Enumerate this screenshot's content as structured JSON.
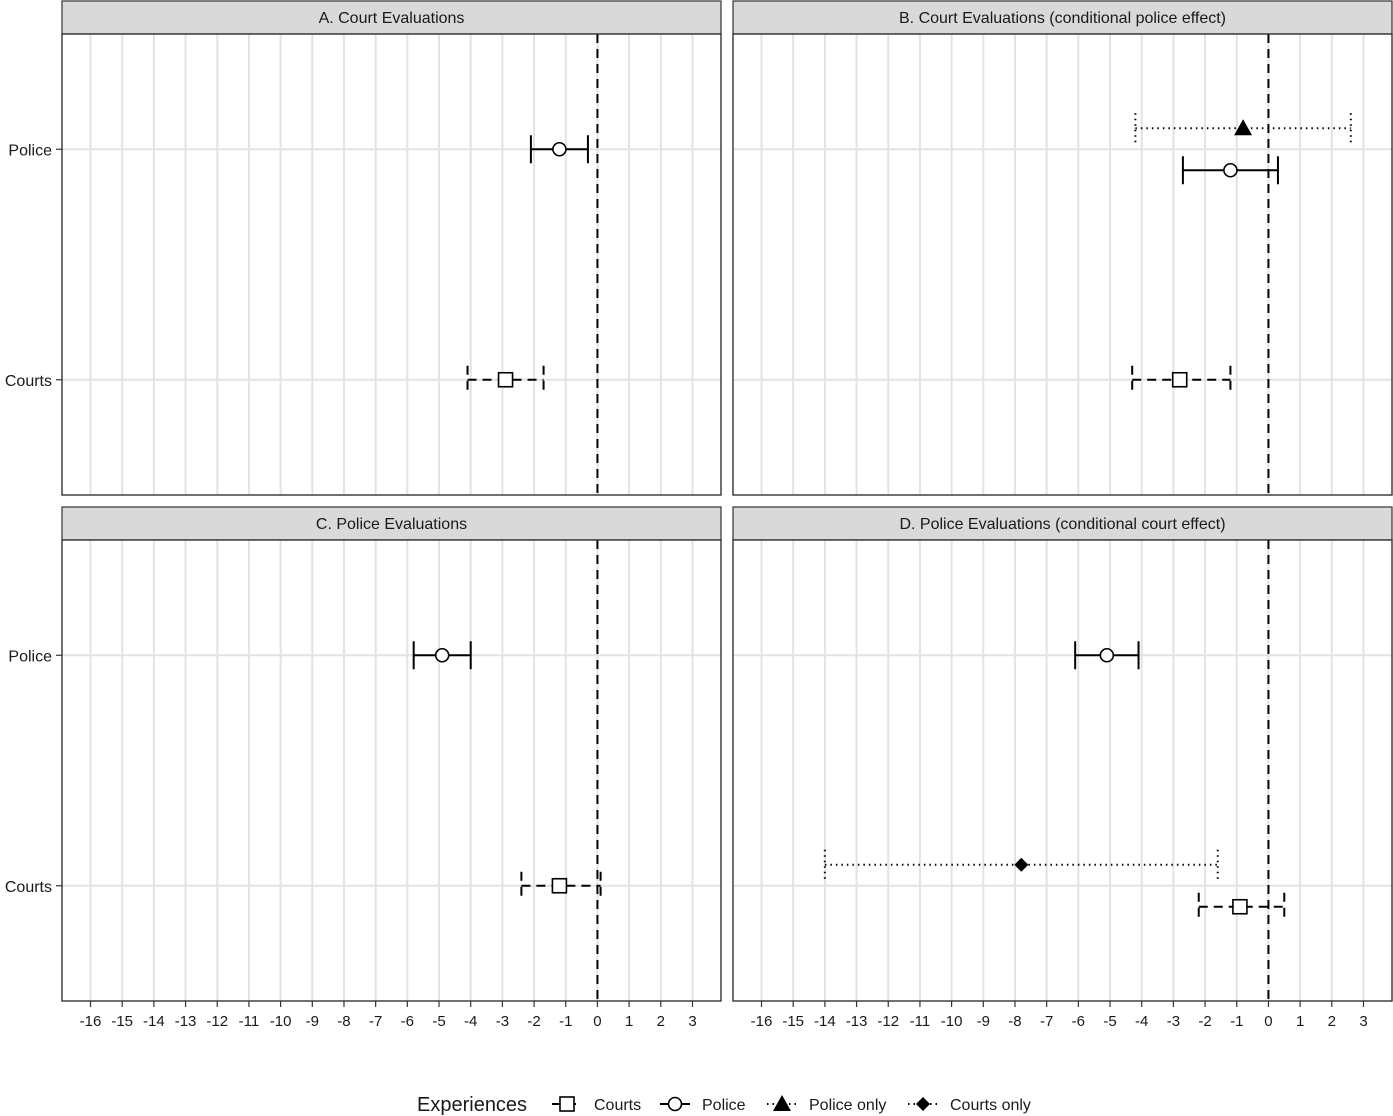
{
  "chart_data": {
    "type": "forest",
    "x_ticks": [
      -16,
      -15,
      -14,
      -13,
      -12,
      -11,
      -10,
      -9,
      -8,
      -7,
      -6,
      -5,
      -4,
      -3,
      -2,
      -1,
      0,
      1,
      2,
      3
    ],
    "xlim": [
      -16.9,
      3.9
    ],
    "y_categories": [
      "Police",
      "Courts"
    ],
    "reference_line": 0,
    "legend": {
      "title": "Experiences",
      "items": [
        {
          "label": "Courts",
          "marker": "square-open",
          "line": "dashed"
        },
        {
          "label": "Police",
          "marker": "circle-open",
          "line": "solid"
        },
        {
          "label": "Police only",
          "marker": "triangle-filled",
          "line": "dotted"
        },
        {
          "label": "Courts only",
          "marker": "diamond-filled",
          "line": "dotted"
        }
      ]
    },
    "panels": [
      {
        "title": "A. Court Evaluations",
        "estimates": [
          {
            "category": "Police",
            "series": "Police",
            "estimate": -1.2,
            "low": -2.1,
            "high": -0.3
          },
          {
            "category": "Courts",
            "series": "Courts",
            "estimate": -2.9,
            "low": -4.1,
            "high": -1.7
          }
        ]
      },
      {
        "title": "B. Court Evaluations (conditional police effect)",
        "estimates": [
          {
            "category": "Police",
            "series": "Police only",
            "estimate": -0.8,
            "low": -4.2,
            "high": 2.6
          },
          {
            "category": "Police",
            "series": "Police",
            "estimate": -1.2,
            "low": -2.7,
            "high": 0.3
          },
          {
            "category": "Courts",
            "series": "Courts",
            "estimate": -2.8,
            "low": -4.3,
            "high": -1.2
          }
        ]
      },
      {
        "title": "C. Police Evaluations",
        "estimates": [
          {
            "category": "Police",
            "series": "Police",
            "estimate": -4.9,
            "low": -5.8,
            "high": -4.0
          },
          {
            "category": "Courts",
            "series": "Courts",
            "estimate": -1.2,
            "low": -2.4,
            "high": 0.1
          }
        ]
      },
      {
        "title": "D. Police Evaluations (conditional court effect)",
        "estimates": [
          {
            "category": "Police",
            "series": "Police",
            "estimate": -5.1,
            "low": -6.1,
            "high": -4.1
          },
          {
            "category": "Courts",
            "series": "Courts only",
            "estimate": -7.8,
            "low": -14.0,
            "high": -1.6
          },
          {
            "category": "Courts",
            "series": "Courts",
            "estimate": -0.9,
            "low": -2.2,
            "high": 0.5
          }
        ]
      }
    ]
  }
}
